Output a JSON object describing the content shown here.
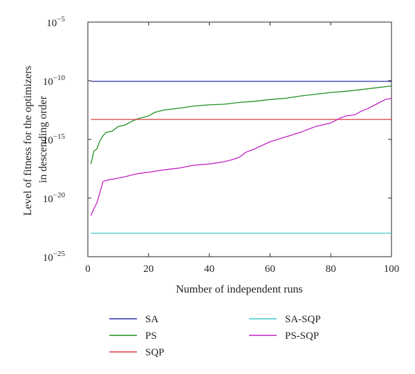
{
  "chart_data": {
    "type": "line",
    "title": "",
    "xlabel": "Number of independent runs",
    "ylabel": [
      "Level of fitness for the optimizers",
      "in descending order"
    ],
    "xlim": [
      0,
      100
    ],
    "ylim_exponent": [
      -25,
      -5
    ],
    "yscale": "log",
    "x_ticks": [
      "0",
      "20",
      "40",
      "60",
      "80",
      "100"
    ],
    "x_tick_values": [
      0,
      20,
      40,
      60,
      80,
      100
    ],
    "y_tick_base": "10",
    "y_tick_exponents": [
      "−5",
      "−10",
      "−15",
      "−20",
      "−25"
    ],
    "y_tick_values": [
      -5,
      -10,
      -15,
      -20,
      -25
    ],
    "grid": false,
    "legend_position": "bottom",
    "series": [
      {
        "name": "SA",
        "color": "#2b2bb0",
        "x": [
          1,
          100
        ],
        "log10_y": [
          -10.05,
          -10.05
        ]
      },
      {
        "name": "PS",
        "color": "#1f8f1f",
        "x": [
          1,
          2,
          3,
          4,
          5,
          6,
          8,
          10,
          12,
          15,
          17,
          20,
          22,
          25,
          30,
          35,
          40,
          45,
          50,
          55,
          60,
          65,
          70,
          75,
          80,
          85,
          90,
          95,
          100
        ],
        "log10_y": [
          -17.1,
          -16.0,
          -15.8,
          -15.1,
          -14.7,
          -14.4,
          -14.3,
          -13.9,
          -13.8,
          -13.4,
          -13.2,
          -13.0,
          -12.7,
          -12.5,
          -12.35,
          -12.15,
          -12.05,
          -12.0,
          -11.85,
          -11.75,
          -11.6,
          -11.5,
          -11.3,
          -11.15,
          -11.0,
          -10.9,
          -10.75,
          -10.6,
          -10.45
        ]
      },
      {
        "name": "SQP",
        "color": "#e03b3b",
        "x": [
          1,
          100
        ],
        "log10_y": [
          -13.3,
          -13.3
        ]
      },
      {
        "name": "SA-SQP",
        "color": "#3fc8c8",
        "x": [
          1,
          100
        ],
        "log10_y": [
          -23.0,
          -23.0
        ]
      },
      {
        "name": "PS-SQP",
        "color": "#c020c0",
        "x": [
          1,
          2,
          3,
          4,
          5,
          6,
          8,
          10,
          12,
          15,
          17,
          20,
          25,
          30,
          35,
          40,
          45,
          48,
          50,
          52,
          55,
          60,
          65,
          70,
          75,
          80,
          83,
          85,
          88,
          90,
          92,
          95,
          98,
          100
        ],
        "log10_y": [
          -21.5,
          -20.9,
          -20.4,
          -19.5,
          -18.6,
          -18.5,
          -18.4,
          -18.3,
          -18.2,
          -18.0,
          -17.9,
          -17.8,
          -17.6,
          -17.45,
          -17.2,
          -17.1,
          -16.9,
          -16.7,
          -16.5,
          -16.1,
          -15.8,
          -15.2,
          -14.8,
          -14.4,
          -13.9,
          -13.6,
          -13.2,
          -13.0,
          -12.9,
          -12.6,
          -12.4,
          -12.0,
          -11.6,
          -11.5
        ]
      }
    ]
  }
}
